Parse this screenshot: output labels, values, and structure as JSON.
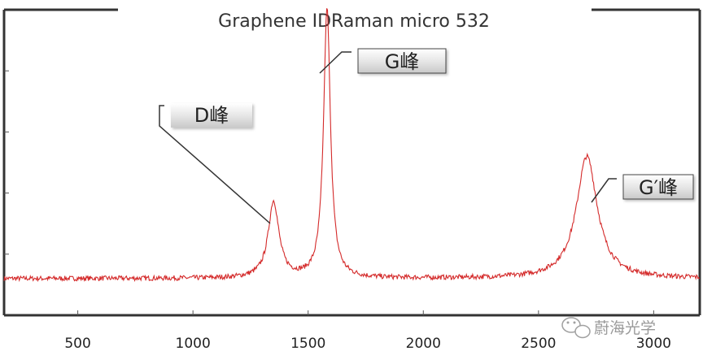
{
  "chart_data": {
    "type": "line",
    "title": "Graphene IDRaman micro 532",
    "xlabel": "",
    "ylabel": "",
    "xlim": [
      180,
      3200
    ],
    "ylim": [
      0,
      100
    ],
    "x_ticks": [
      500,
      1000,
      1500,
      2000,
      2500,
      3000
    ],
    "x_tick_labels": [
      "500",
      "1000",
      "1500",
      "2000",
      "2500",
      "3000"
    ],
    "y_ticks": [
      20,
      40,
      60,
      80
    ],
    "grid": false,
    "legend": "none",
    "line_color": "#d42a2a",
    "baseline": 12,
    "peaks": [
      {
        "x": 1350,
        "height": 25,
        "width": 28
      },
      {
        "x": 1582,
        "height": 88,
        "width": 18
      },
      {
        "x": 2710,
        "height": 40,
        "width": 55
      }
    ],
    "annotations": [
      {
        "label": "D峰",
        "x": 1350,
        "y": 25
      },
      {
        "label": "G峰",
        "x": 1582,
        "y": 82
      },
      {
        "label": "G′峰",
        "x": 2710,
        "y": 36
      }
    ]
  },
  "watermark": {
    "text": "蔚海光学"
  }
}
